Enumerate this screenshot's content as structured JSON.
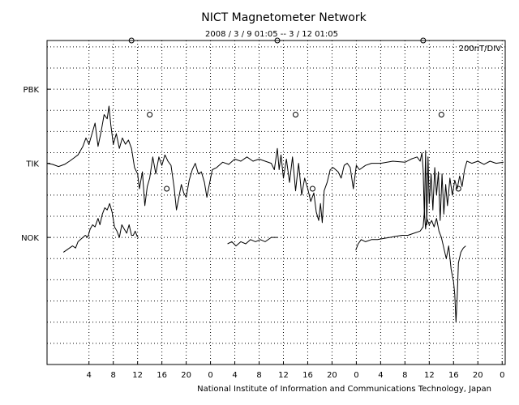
{
  "chart_data": {
    "type": "line",
    "title": "NICT Magnetometer Network",
    "subtitle": "2008 / 3 / 9   01:05 --  3 / 12   01:05",
    "scale_label": "200nT/DIV",
    "footer": "National Institute of Information and Communications Technology, Japan",
    "x_unit": "hour (UT)",
    "xlim": [
      -2.9,
      72.5
    ],
    "x_ticks": [
      {
        "x": 4,
        "label": "4"
      },
      {
        "x": 8,
        "label": "8"
      },
      {
        "x": 12,
        "label": "12"
      },
      {
        "x": 16,
        "label": "16"
      },
      {
        "x": 20,
        "label": "20"
      },
      {
        "x": 24,
        "label": "0"
      },
      {
        "x": 28,
        "label": "4"
      },
      {
        "x": 32,
        "label": "8"
      },
      {
        "x": 36,
        "label": "12"
      },
      {
        "x": 40,
        "label": "16"
      },
      {
        "x": 44,
        "label": "20"
      },
      {
        "x": 48,
        "label": "0"
      },
      {
        "x": 52,
        "label": "4"
      },
      {
        "x": 56,
        "label": "8"
      },
      {
        "x": 60,
        "label": "12"
      },
      {
        "x": 64,
        "label": "16"
      },
      {
        "x": 68,
        "label": "20"
      },
      {
        "x": 72,
        "label": "0"
      }
    ],
    "y_unit": "divisions (200 nT each)",
    "ylim": [
      -3.0,
      12.3
    ],
    "grid": true,
    "stations": [
      {
        "name": "PBK",
        "baseline": 10
      },
      {
        "name": "TIK",
        "baseline": 6.5
      },
      {
        "name": "NOK",
        "baseline": 3
      }
    ],
    "noon_markers": [
      {
        "station": "PBK",
        "x": 11.0
      },
      {
        "station": "PBK",
        "x": 35.0
      },
      {
        "station": "PBK",
        "x": 59.0
      },
      {
        "station": "TIK",
        "x": 14.0
      },
      {
        "station": "TIK",
        "x": 38.0
      },
      {
        "station": "TIK",
        "x": 62.0
      },
      {
        "station": "NOK",
        "x": 16.8
      },
      {
        "station": "NOK",
        "x": 40.8
      },
      {
        "station": "NOK",
        "x": 64.8
      }
    ],
    "series": [
      {
        "station": "TIK",
        "segments": [
          [
            [
              -2.9,
              6.5
            ],
            [
              -2.0,
              6.45
            ],
            [
              -1.0,
              6.35
            ],
            [
              0.0,
              6.45
            ],
            [
              0.8,
              6.6
            ],
            [
              1.5,
              6.75
            ],
            [
              2.2,
              6.9
            ],
            [
              3.0,
              7.3
            ],
            [
              3.5,
              7.7
            ],
            [
              4.0,
              7.4
            ],
            [
              4.5,
              7.9
            ],
            [
              5.0,
              8.4
            ],
            [
              5.5,
              7.3
            ],
            [
              6.0,
              8.0
            ],
            [
              6.5,
              8.8
            ],
            [
              7.0,
              8.6
            ],
            [
              7.3,
              9.2
            ],
            [
              7.6,
              8.3
            ],
            [
              8.0,
              7.4
            ],
            [
              8.5,
              7.9
            ],
            [
              9.0,
              7.2
            ],
            [
              9.5,
              7.7
            ],
            [
              10.0,
              7.4
            ],
            [
              10.5,
              7.6
            ],
            [
              11.0,
              7.2
            ],
            [
              11.5,
              6.3
            ],
            [
              12.0,
              6.0
            ],
            [
              12.3,
              5.3
            ],
            [
              12.8,
              6.1
            ],
            [
              13.2,
              4.5
            ],
            [
              13.6,
              5.4
            ],
            [
              14.0,
              5.8
            ],
            [
              14.5,
              6.8
            ],
            [
              15.0,
              6.0
            ],
            [
              15.5,
              6.8
            ],
            [
              16.0,
              6.4
            ],
            [
              16.5,
              6.9
            ],
            [
              17.0,
              6.6
            ],
            [
              17.5,
              6.4
            ],
            [
              18.0,
              5.4
            ],
            [
              18.4,
              4.3
            ],
            [
              18.8,
              4.9
            ],
            [
              19.2,
              5.5
            ],
            [
              19.6,
              5.1
            ],
            [
              20.0,
              4.9
            ],
            [
              20.5,
              5.7
            ],
            [
              21.0,
              6.2
            ],
            [
              21.5,
              6.5
            ],
            [
              22.0,
              6.0
            ],
            [
              22.5,
              6.1
            ],
            [
              23.0,
              5.6
            ],
            [
              23.4,
              4.9
            ],
            [
              23.8,
              5.5
            ],
            [
              24.3,
              6.2
            ],
            [
              25.0,
              6.3
            ],
            [
              26.0,
              6.55
            ],
            [
              27.0,
              6.45
            ],
            [
              28.0,
              6.7
            ],
            [
              29.0,
              6.6
            ],
            [
              30.0,
              6.8
            ],
            [
              31.0,
              6.6
            ],
            [
              32.0,
              6.7
            ],
            [
              33.0,
              6.6
            ],
            [
              34.0,
              6.5
            ],
            [
              34.5,
              6.2
            ],
            [
              35.0,
              7.2
            ],
            [
              35.3,
              6.2
            ],
            [
              35.6,
              6.9
            ],
            [
              36.0,
              5.8
            ],
            [
              36.5,
              6.7
            ],
            [
              37.0,
              5.6
            ],
            [
              37.5,
              6.8
            ],
            [
              38.0,
              5.2
            ],
            [
              38.5,
              6.5
            ],
            [
              39.0,
              5.0
            ],
            [
              39.5,
              5.8
            ],
            [
              40.0,
              5.3
            ],
            [
              40.5,
              4.7
            ],
            [
              41.0,
              5.1
            ],
            [
              41.4,
              4.2
            ],
            [
              41.8,
              3.8
            ],
            [
              42.1,
              4.6
            ],
            [
              42.4,
              3.7
            ],
            [
              42.7,
              5.2
            ],
            [
              43.2,
              5.6
            ],
            [
              43.7,
              6.2
            ],
            [
              44.2,
              6.3
            ],
            [
              45.0,
              6.1
            ],
            [
              45.5,
              5.8
            ],
            [
              46.0,
              6.4
            ],
            [
              46.5,
              6.5
            ],
            [
              47.0,
              6.3
            ],
            [
              47.5,
              5.3
            ],
            [
              48.0,
              6.4
            ],
            [
              48.5,
              6.2
            ],
            [
              49.5,
              6.4
            ],
            [
              50.5,
              6.5
            ],
            [
              52.0,
              6.5
            ],
            [
              54.0,
              6.6
            ],
            [
              56.0,
              6.55
            ],
            [
              57.0,
              6.7
            ],
            [
              58.0,
              6.8
            ],
            [
              58.5,
              6.6
            ],
            [
              58.8,
              7.0
            ],
            [
              59.0,
              6.2
            ],
            [
              59.2,
              4.0
            ],
            [
              59.4,
              7.1
            ],
            [
              59.6,
              3.6
            ],
            [
              59.8,
              6.8
            ],
            [
              60.0,
              4.6
            ],
            [
              60.3,
              6.0
            ],
            [
              60.6,
              4.3
            ],
            [
              60.9,
              6.3
            ],
            [
              61.2,
              5.0
            ],
            [
              61.5,
              6.1
            ],
            [
              61.8,
              3.8
            ],
            [
              62.1,
              6.0
            ],
            [
              62.4,
              4.1
            ],
            [
              62.7,
              5.5
            ],
            [
              63.0,
              4.5
            ],
            [
              63.4,
              5.8
            ],
            [
              63.8,
              5.0
            ],
            [
              64.2,
              5.7
            ],
            [
              64.6,
              5.3
            ],
            [
              65.0,
              5.9
            ],
            [
              65.4,
              5.4
            ],
            [
              65.8,
              6.2
            ],
            [
              66.2,
              6.6
            ],
            [
              67.0,
              6.5
            ],
            [
              68.0,
              6.6
            ],
            [
              69.0,
              6.45
            ],
            [
              70.0,
              6.6
            ],
            [
              71.0,
              6.5
            ],
            [
              72.2,
              6.55
            ]
          ]
        ]
      },
      {
        "station": "NOK",
        "segments": [
          [
            [
              -0.2,
              2.3
            ],
            [
              0.3,
              2.4
            ],
            [
              0.8,
              2.5
            ],
            [
              1.3,
              2.6
            ],
            [
              1.8,
              2.5
            ],
            [
              2.2,
              2.8
            ],
            [
              2.6,
              2.9
            ],
            [
              3.0,
              3.0
            ],
            [
              3.4,
              3.1
            ],
            [
              3.8,
              3.0
            ],
            [
              4.2,
              3.4
            ],
            [
              4.6,
              3.6
            ],
            [
              5.0,
              3.5
            ],
            [
              5.5,
              3.9
            ],
            [
              5.8,
              3.6
            ],
            [
              6.2,
              4.1
            ],
            [
              6.6,
              4.4
            ],
            [
              7.0,
              4.3
            ],
            [
              7.4,
              4.6
            ],
            [
              7.8,
              4.2
            ],
            [
              8.2,
              3.5
            ],
            [
              8.6,
              3.3
            ],
            [
              9.0,
              3.0
            ],
            [
              9.4,
              3.6
            ],
            [
              9.8,
              3.4
            ],
            [
              10.2,
              3.2
            ],
            [
              10.6,
              3.6
            ],
            [
              11.0,
              3.1
            ],
            [
              11.3,
              3.1
            ],
            [
              11.6,
              3.3
            ],
            [
              12.0,
              3.0
            ]
          ],
          [
            [
              26.8,
              2.7
            ],
            [
              27.5,
              2.8
            ],
            [
              28.2,
              2.6
            ],
            [
              29.0,
              2.8
            ],
            [
              29.8,
              2.7
            ],
            [
              30.6,
              2.9
            ],
            [
              31.4,
              2.8
            ],
            [
              32.2,
              2.9
            ],
            [
              33.0,
              2.8
            ],
            [
              34.0,
              3.0
            ],
            [
              35.0,
              3.0
            ]
          ],
          [
            [
              47.9,
              2.4
            ],
            [
              48.3,
              2.7
            ],
            [
              48.8,
              2.9
            ],
            [
              49.5,
              2.8
            ],
            [
              50.5,
              2.9
            ],
            [
              51.5,
              2.9
            ],
            [
              52.5,
              2.95
            ],
            [
              53.5,
              3.0
            ],
            [
              54.5,
              3.05
            ],
            [
              55.5,
              3.1
            ],
            [
              56.5,
              3.1
            ],
            [
              57.5,
              3.2
            ],
            [
              58.5,
              3.3
            ],
            [
              59.0,
              3.5
            ],
            [
              59.2,
              4.2
            ],
            [
              59.4,
              3.4
            ],
            [
              59.6,
              3.9
            ],
            [
              60.0,
              3.6
            ],
            [
              60.4,
              3.8
            ],
            [
              60.8,
              3.5
            ],
            [
              61.2,
              3.9
            ],
            [
              61.6,
              3.3
            ],
            [
              62.0,
              3.0
            ],
            [
              62.4,
              2.5
            ],
            [
              62.8,
              2.0
            ],
            [
              63.2,
              2.6
            ],
            [
              63.6,
              1.5
            ],
            [
              64.0,
              0.9
            ],
            [
              64.2,
              0.3
            ],
            [
              64.4,
              -1.0
            ],
            [
              64.6,
              0.2
            ],
            [
              64.8,
              1.8
            ],
            [
              65.2,
              2.3
            ],
            [
              65.6,
              2.5
            ],
            [
              66.0,
              2.6
            ]
          ]
        ]
      }
    ]
  }
}
